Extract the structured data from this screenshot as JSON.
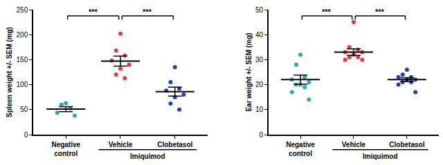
{
  "chart_data": [
    {
      "type": "scatter",
      "ylabel": "Spleen weight +/- SEM (mg)",
      "categories": [
        "Negative control",
        "Vehicle",
        "Clobetasol"
      ],
      "colors": [
        "#2aa7b3",
        "#e8383d",
        "#1f3fbf"
      ],
      "values": [
        [
          63,
          60,
          52,
          44,
          38
        ],
        [
          202,
          168,
          158,
          148,
          140,
          132,
          120,
          113
        ],
        [
          135,
          105,
          92,
          88,
          80,
          75,
          62,
          50
        ]
      ],
      "mean": [
        51,
        147,
        86
      ],
      "sem": [
        5,
        10,
        9
      ],
      "ylim": [
        0,
        250
      ],
      "yticks": [
        0,
        50,
        100,
        150,
        200,
        250
      ],
      "group": {
        "label": "Imiquimod",
        "categories": [
          "Vehicle",
          "Clobetasol"
        ]
      },
      "comparisons": [
        {
          "groups": [
            "Negative control",
            "Vehicle"
          ],
          "label": "***"
        },
        {
          "groups": [
            "Vehicle",
            "Clobetasol"
          ],
          "label": "***"
        }
      ]
    },
    {
      "type": "scatter",
      "ylabel": "Ear weight +/- SEM (mg)",
      "categories": [
        "Negative control",
        "Vehicle",
        "Clobetasol"
      ],
      "colors": [
        "#2aa7b3",
        "#e8383d",
        "#1f3fbf"
      ],
      "values": [
        [
          32,
          28,
          23,
          22,
          21,
          20,
          20,
          19,
          17,
          14
        ],
        [
          45,
          35,
          34,
          33,
          33,
          32,
          31,
          31,
          30,
          30
        ],
        [
          26,
          24,
          23,
          23,
          22,
          22,
          21,
          21,
          20,
          17
        ]
      ],
      "mean": [
        22,
        33,
        22
      ],
      "sem": [
        1.8,
        1.3,
        0.8
      ],
      "ylim": [
        0,
        50
      ],
      "yticks": [
        0,
        10,
        20,
        30,
        40,
        50
      ],
      "group": {
        "label": "Imiquimod",
        "categories": [
          "Vehicle",
          "Clobetasol"
        ]
      },
      "comparisons": [
        {
          "groups": [
            "Negative control",
            "Vehicle"
          ],
          "label": "***"
        },
        {
          "groups": [
            "Vehicle",
            "Clobetasol"
          ],
          "label": "***"
        }
      ]
    }
  ]
}
